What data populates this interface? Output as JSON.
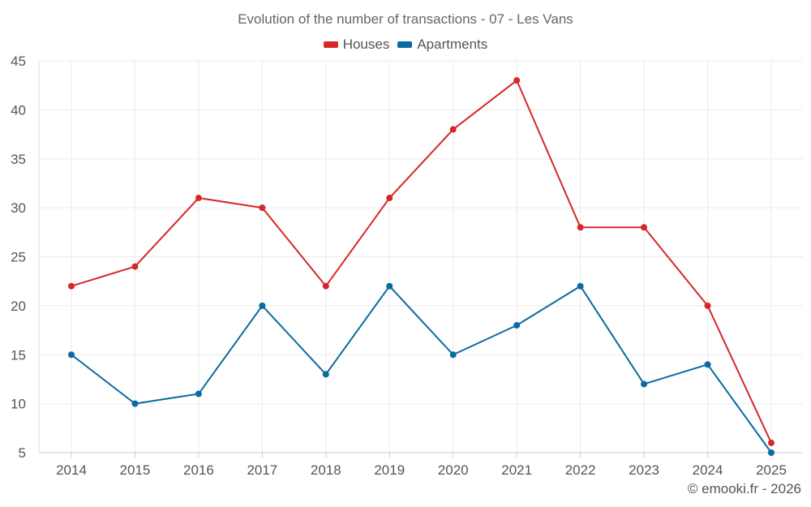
{
  "chart_data": {
    "type": "line",
    "title": "Evolution of the number of transactions - 07 - Les Vans",
    "categories": [
      "2014",
      "2015",
      "2016",
      "2017",
      "2018",
      "2019",
      "2020",
      "2021",
      "2022",
      "2023",
      "2024",
      "2025"
    ],
    "series": [
      {
        "name": "Houses",
        "color": "#d62728",
        "values": [
          22,
          24,
          31,
          30,
          22,
          31,
          38,
          43,
          28,
          28,
          20,
          6
        ]
      },
      {
        "name": "Apartments",
        "color": "#0a6aa1",
        "values": [
          15,
          10,
          11,
          20,
          13,
          22,
          15,
          18,
          22,
          12,
          14,
          5
        ]
      }
    ],
    "xlabel": "",
    "ylabel": "",
    "ylim": [
      5,
      45
    ],
    "yticks": [
      5,
      10,
      15,
      20,
      25,
      30,
      35,
      40,
      45
    ],
    "grid": true,
    "legend_position": "top-center"
  },
  "credit": "© emooki.fr - 2026"
}
